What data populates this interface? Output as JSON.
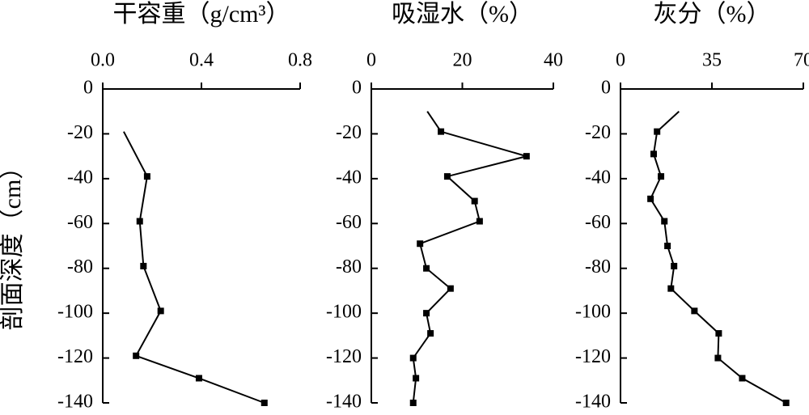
{
  "chart_data": [
    {
      "type": "line",
      "title": "干容重（g/cm³）",
      "ylabel": "剖面深度（cm）",
      "x": [
        0.085,
        0.18,
        0.15,
        0.165,
        0.235,
        0.135,
        0.39,
        0.655
      ],
      "y": [
        -19,
        -39,
        -59,
        -79,
        -99,
        -119,
        -129,
        -140
      ],
      "xlim": [
        0,
        0.8
      ],
      "xticks": [
        {
          "value": 0,
          "label": "0.0"
        },
        0.4,
        0.8
      ],
      "ylim": [
        -140,
        0
      ],
      "yticks": [
        0,
        -20,
        -40,
        -60,
        -80,
        -100,
        -120,
        -140
      ],
      "color": "#000000"
    },
    {
      "type": "line",
      "title": "吸湿水（%）",
      "x": [
        12.3,
        15.3,
        34.1,
        16.7,
        22.7,
        23.8,
        10.7,
        12.1,
        17.4,
        12.1,
        13,
        9.2,
        9.8,
        9.2
      ],
      "y": [
        -10,
        -19,
        -30,
        -39,
        -50,
        -59,
        -69,
        -80,
        -89,
        -100,
        -109,
        -120,
        -129,
        -140
      ],
      "xlim": [
        0,
        40
      ],
      "xticks": [
        0,
        20,
        40
      ],
      "ylim": [
        -140,
        0
      ],
      "yticks": [
        0,
        -20,
        -40,
        -60,
        -80,
        -100,
        -120,
        -140
      ],
      "color": "#000000"
    },
    {
      "type": "line",
      "title": "灰分（%）",
      "x": [
        22.4,
        14,
        12.7,
        15.5,
        11.5,
        16.8,
        18,
        20.5,
        19.3,
        28.3,
        37.6,
        37.3,
        46.6,
        63.4
      ],
      "y": [
        -10,
        -19,
        -29,
        -39,
        -49,
        -59,
        -70,
        -79,
        -89,
        -99,
        -109,
        -120,
        -129,
        -140
      ],
      "xlim": [
        0,
        70
      ],
      "xticks": [
        0,
        35,
        70
      ],
      "ylim": [
        -140,
        0
      ],
      "yticks": [
        0,
        -20,
        -40,
        -60,
        -80,
        -100,
        -120,
        -140
      ],
      "color": "#000000"
    }
  ]
}
